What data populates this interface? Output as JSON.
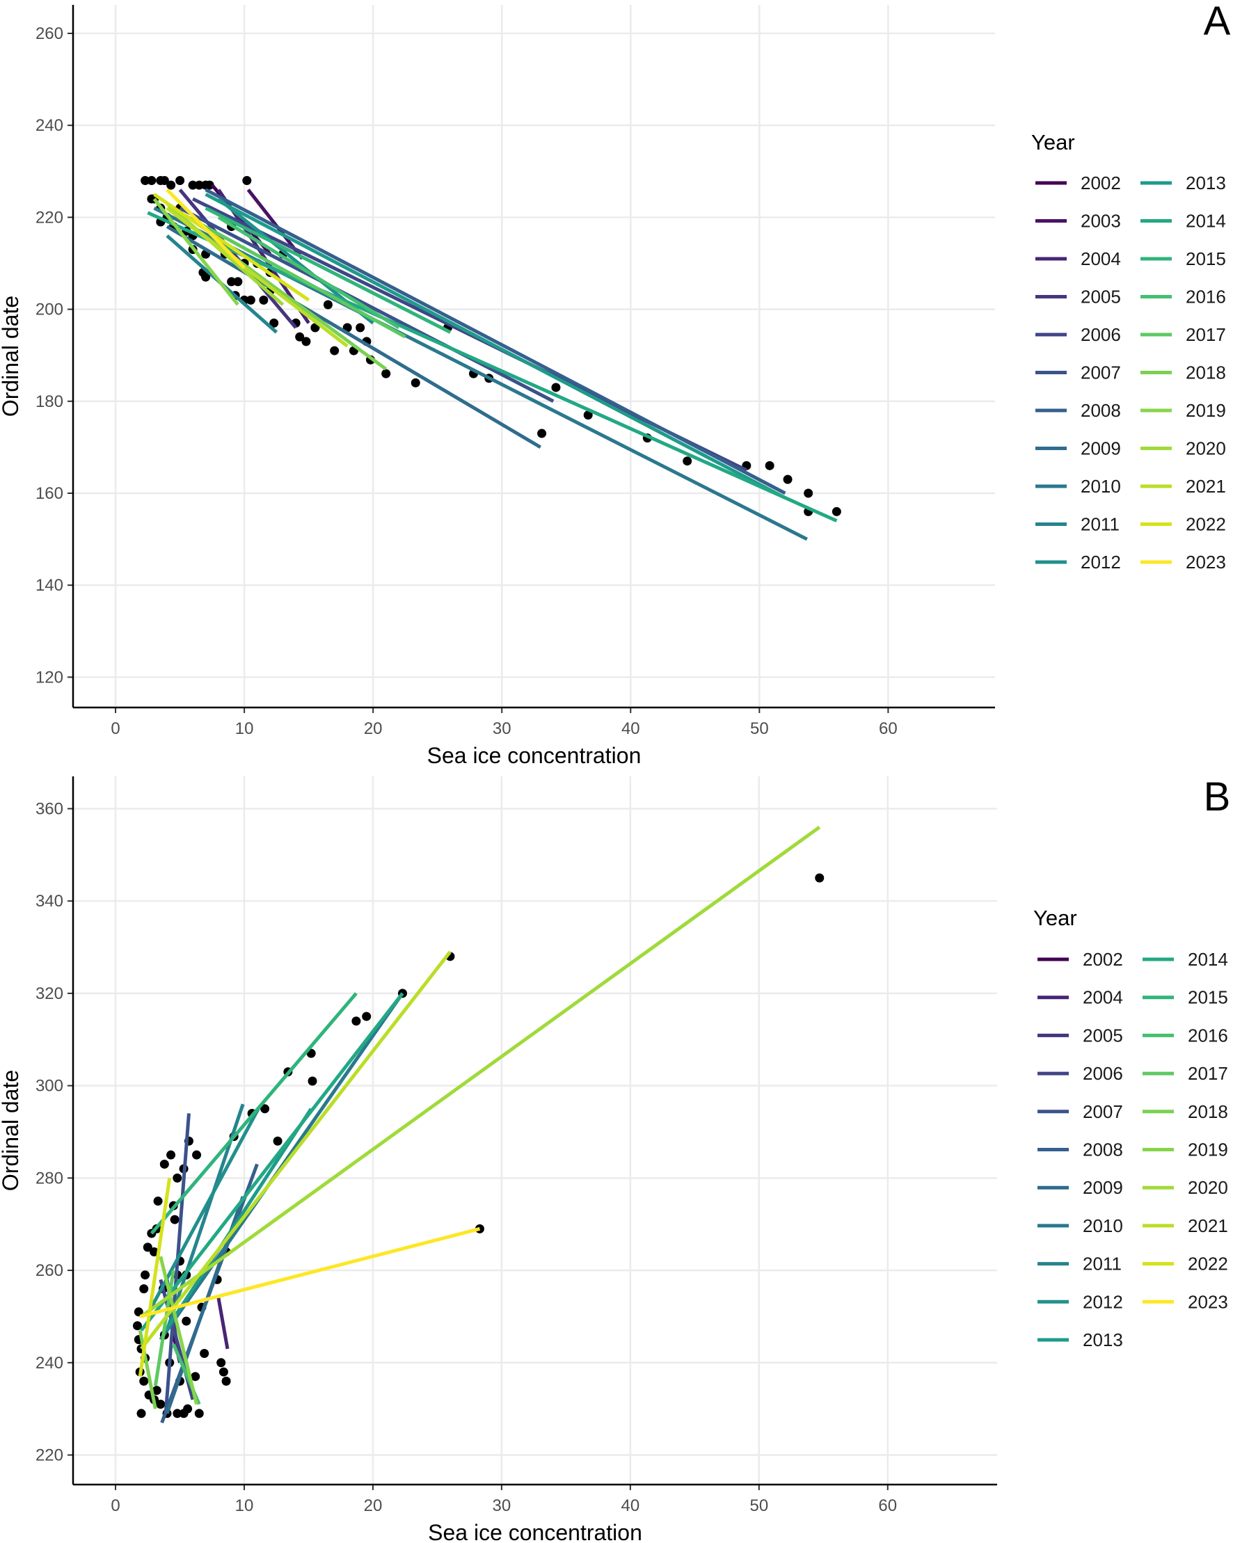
{
  "colors": {
    "2002": "#440154",
    "2003": "#471365",
    "2004": "#482475",
    "2005": "#463480",
    "2006": "#414487",
    "2007": "#3B528B",
    "2008": "#355F8D",
    "2009": "#2F6C8E",
    "2010": "#2A788E",
    "2011": "#25848E",
    "2012": "#21908C",
    "2013": "#1E9B8A",
    "2014": "#22A884",
    "2015": "#2FB47C",
    "2016": "#44BF70",
    "2017": "#5EC962",
    "2018": "#7AD151",
    "2019": "#86D549",
    "2020": "#A0DA39",
    "2021": "#BADE28",
    "2022": "#D5E21A",
    "2023": "#FDE725"
  },
  "chart_data": [
    {
      "type": "scatter",
      "panel_tag": "A",
      "xlabel": "Sea ice concentration",
      "ylabel": "Ordinal date",
      "xlim": [
        -3.3,
        68.3
      ],
      "ylim": [
        113.4,
        266.2
      ],
      "xticks": [
        0,
        10,
        20,
        30,
        40,
        50,
        60
      ],
      "yticks": [
        120,
        140,
        160,
        180,
        200,
        220,
        240,
        260
      ],
      "grid": true,
      "legend_title": "Year",
      "legend_placement": "right",
      "legend_columns": [
        [
          "2002",
          "2003",
          "2004",
          "2005",
          "2006",
          "2007",
          "2008",
          "2009",
          "2010",
          "2011",
          "2012"
        ],
        [
          "2013",
          "2014",
          "2015",
          "2016",
          "2017",
          "2018",
          "2019",
          "2020",
          "2021",
          "2022",
          "2023"
        ]
      ],
      "points": [
        [
          2.3,
          228
        ],
        [
          2.8,
          228
        ],
        [
          3.5,
          228
        ],
        [
          3.8,
          228
        ],
        [
          5,
          228
        ],
        [
          4.3,
          227
        ],
        [
          6,
          227
        ],
        [
          6.5,
          227
        ],
        [
          7,
          227
        ],
        [
          7.3,
          227
        ],
        [
          10.2,
          228
        ],
        [
          2.8,
          224
        ],
        [
          3,
          224
        ],
        [
          3.5,
          222
        ],
        [
          4,
          220
        ],
        [
          3.5,
          219
        ],
        [
          4.5,
          218
        ],
        [
          5.5,
          217
        ],
        [
          6,
          216
        ],
        [
          6,
          213
        ],
        [
          7,
          212
        ],
        [
          6.8,
          208
        ],
        [
          7,
          207
        ],
        [
          8.5,
          212
        ],
        [
          9,
          206
        ],
        [
          9.5,
          206
        ],
        [
          9.3,
          203
        ],
        [
          10,
          202
        ],
        [
          10.5,
          202
        ],
        [
          11,
          210
        ],
        [
          11.5,
          202
        ],
        [
          12,
          204
        ],
        [
          12.3,
          197
        ],
        [
          14,
          197
        ],
        [
          14.3,
          194
        ],
        [
          14.8,
          193
        ],
        [
          15.5,
          196
        ],
        [
          17,
          191
        ],
        [
          16.5,
          201
        ],
        [
          18,
          196
        ],
        [
          18.5,
          191
        ],
        [
          19,
          196
        ],
        [
          19.5,
          193
        ],
        [
          19.8,
          189
        ],
        [
          21,
          186
        ],
        [
          23.3,
          184
        ],
        [
          25.8,
          196
        ],
        [
          27.8,
          186
        ],
        [
          29,
          185
        ],
        [
          33.1,
          173
        ],
        [
          34.2,
          183
        ],
        [
          36.7,
          177
        ],
        [
          41.3,
          172
        ],
        [
          44.4,
          167
        ],
        [
          49,
          166
        ],
        [
          50.8,
          166
        ],
        [
          52.2,
          163
        ],
        [
          53.8,
          160
        ],
        [
          53.8,
          156
        ],
        [
          56,
          156
        ],
        [
          10,
          210
        ],
        [
          8,
          215
        ],
        [
          5,
          222
        ],
        [
          9,
          218
        ],
        [
          12,
          208
        ],
        [
          13,
          212
        ]
      ],
      "lines": [
        {
          "year": "2002",
          "x": [
            7.5,
            12
          ],
          "y": [
            227,
            212
          ]
        },
        {
          "year": "2003",
          "x": [
            10.3,
            14.5
          ],
          "y": [
            226,
            211
          ]
        },
        {
          "year": "2004",
          "x": [
            8,
            15
          ],
          "y": [
            226,
            197
          ]
        },
        {
          "year": "2005",
          "x": [
            5,
            14
          ],
          "y": [
            226,
            196
          ]
        },
        {
          "year": "2006",
          "x": [
            6,
            49
          ],
          "y": [
            224,
            165
          ]
        },
        {
          "year": "2007",
          "x": [
            5,
            34
          ],
          "y": [
            222,
            180
          ]
        },
        {
          "year": "2008",
          "x": [
            7,
            52
          ],
          "y": [
            226,
            160
          ]
        },
        {
          "year": "2009",
          "x": [
            4,
            33
          ],
          "y": [
            218,
            170
          ]
        },
        {
          "year": "2010",
          "x": [
            3,
            53.7
          ],
          "y": [
            222,
            150
          ]
        },
        {
          "year": "2011",
          "x": [
            4,
            12.5
          ],
          "y": [
            216,
            195
          ]
        },
        {
          "year": "2012",
          "x": [
            8,
            20
          ],
          "y": [
            224,
            197
          ]
        },
        {
          "year": "2013",
          "x": [
            7,
            52
          ],
          "y": [
            225,
            159
          ]
        },
        {
          "year": "2014",
          "x": [
            2.5,
            56
          ],
          "y": [
            221,
            154
          ]
        },
        {
          "year": "2015",
          "x": [
            7,
            26
          ],
          "y": [
            222,
            195
          ]
        },
        {
          "year": "2016",
          "x": [
            8,
            22
          ],
          "y": [
            220,
            196
          ]
        },
        {
          "year": "2017",
          "x": [
            5,
            22.5
          ],
          "y": [
            221,
            194
          ]
        },
        {
          "year": "2018",
          "x": [
            4,
            21
          ],
          "y": [
            222,
            187
          ]
        },
        {
          "year": "2019",
          "x": [
            3,
            9.5
          ],
          "y": [
            224,
            201
          ]
        },
        {
          "year": "2020",
          "x": [
            4,
            13
          ],
          "y": [
            223,
            201
          ]
        },
        {
          "year": "2021",
          "x": [
            4,
            18
          ],
          "y": [
            222,
            192
          ]
        },
        {
          "year": "2022",
          "x": [
            3,
            15
          ],
          "y": [
            225,
            202
          ]
        },
        {
          "year": "2023",
          "x": [
            4,
            10
          ],
          "y": [
            226,
            209
          ]
        }
      ]
    },
    {
      "type": "scatter",
      "panel_tag": "B",
      "xlabel": "Sea ice concentration",
      "ylabel": "Ordinal date",
      "xlim": [
        -3.3,
        68.5
      ],
      "ylim": [
        213.6,
        367
      ],
      "xticks": [
        0,
        10,
        20,
        30,
        40,
        50,
        60
      ],
      "yticks": [
        220,
        240,
        260,
        280,
        300,
        320,
        340,
        360
      ],
      "grid": true,
      "legend_title": "Year",
      "legend_placement": "right",
      "legend_columns": [
        [
          "2002",
          "2004",
          "2005",
          "2006",
          "2007",
          "2008",
          "2009",
          "2010",
          "2011",
          "2012",
          "2013"
        ],
        [
          "2014",
          "2015",
          "2016",
          "2017",
          "2018",
          "2019",
          "2020",
          "2021",
          "2022",
          "2023"
        ]
      ],
      "points": [
        [
          54.7,
          345
        ],
        [
          28.3,
          269
        ],
        [
          26,
          328
        ],
        [
          22.3,
          320
        ],
        [
          19.5,
          315
        ],
        [
          18.7,
          314
        ],
        [
          15.2,
          307
        ],
        [
          15.3,
          301
        ],
        [
          13.4,
          303
        ],
        [
          12.6,
          288
        ],
        [
          11.6,
          295
        ],
        [
          10.6,
          294
        ],
        [
          9.2,
          289
        ],
        [
          8.6,
          264
        ],
        [
          7.9,
          258
        ],
        [
          8.2,
          240
        ],
        [
          8.4,
          238
        ],
        [
          8.6,
          236
        ],
        [
          6.9,
          242
        ],
        [
          6.3,
          285
        ],
        [
          5.7,
          288
        ],
        [
          5.3,
          282
        ],
        [
          4.8,
          280
        ],
        [
          4.3,
          285
        ],
        [
          3.8,
          283
        ],
        [
          4.5,
          274
        ],
        [
          4.6,
          271
        ],
        [
          3.3,
          275
        ],
        [
          3.2,
          269
        ],
        [
          2.8,
          268
        ],
        [
          2.5,
          265
        ],
        [
          3,
          264
        ],
        [
          2.3,
          259
        ],
        [
          2.2,
          256
        ],
        [
          1.8,
          251
        ],
        [
          1.7,
          248
        ],
        [
          1.8,
          245
        ],
        [
          2,
          243
        ],
        [
          2.3,
          241
        ],
        [
          1.9,
          238
        ],
        [
          2.2,
          236
        ],
        [
          2,
          229
        ],
        [
          2.6,
          233
        ],
        [
          3,
          232
        ],
        [
          3.5,
          231
        ],
        [
          4,
          229
        ],
        [
          4.8,
          229
        ],
        [
          5.3,
          229
        ],
        [
          5.6,
          230
        ],
        [
          6.5,
          229
        ],
        [
          6.2,
          237
        ],
        [
          5,
          236
        ],
        [
          3.2,
          234
        ],
        [
          4.2,
          240
        ],
        [
          5.5,
          249
        ],
        [
          6.7,
          252
        ],
        [
          5,
          262
        ],
        [
          4.8,
          259
        ],
        [
          5.5,
          259
        ],
        [
          3.7,
          256
        ],
        [
          4.5,
          250
        ],
        [
          3.8,
          246
        ]
      ],
      "lines": [
        {
          "year": "2002",
          "x": [
            4.5,
            5
          ],
          "y": [
            246,
            240
          ]
        },
        {
          "year": "2004",
          "x": [
            8,
            8.7
          ],
          "y": [
            254,
            243
          ]
        },
        {
          "year": "2005",
          "x": [
            4,
            5
          ],
          "y": [
            258,
            240
          ]
        },
        {
          "year": "2006",
          "x": [
            3.5,
            6
          ],
          "y": [
            258,
            232
          ]
        },
        {
          "year": "2007",
          "x": [
            5.7,
            3.9
          ],
          "y": [
            294,
            229
          ]
        },
        {
          "year": "2008",
          "x": [
            3.6,
            11
          ],
          "y": [
            227,
            283
          ]
        },
        {
          "year": "2009",
          "x": [
            4,
            9.9
          ],
          "y": [
            229,
            276
          ]
        },
        {
          "year": "2010",
          "x": [
            3.5,
            22.3
          ],
          "y": [
            245,
            320
          ]
        },
        {
          "year": "2011",
          "x": [
            4,
            9.9
          ],
          "y": [
            247,
            296
          ]
        },
        {
          "year": "2012",
          "x": [
            2.6,
            11.1
          ],
          "y": [
            251,
            295
          ]
        },
        {
          "year": "2013",
          "x": [
            3.9,
            15.2
          ],
          "y": [
            247,
            295
          ]
        },
        {
          "year": "2014",
          "x": [
            2,
            22.3
          ],
          "y": [
            247,
            320
          ]
        },
        {
          "year": "2015",
          "x": [
            2.8,
            18.7
          ],
          "y": [
            268,
            320
          ]
        },
        {
          "year": "2016",
          "x": [
            4.5,
            6.5
          ],
          "y": [
            244,
            231
          ]
        },
        {
          "year": "2017",
          "x": [
            4.5,
            3.1
          ],
          "y": [
            260,
            235
          ]
        },
        {
          "year": "2018",
          "x": [
            1.9,
            3.1
          ],
          "y": [
            247,
            230
          ]
        },
        {
          "year": "2019",
          "x": [
            3.5,
            6.3
          ],
          "y": [
            263,
            231
          ]
        },
        {
          "year": "2020",
          "x": [
            2,
            54.7
          ],
          "y": [
            250,
            356
          ]
        },
        {
          "year": "2021",
          "x": [
            2,
            26
          ],
          "y": [
            243,
            329
          ]
        },
        {
          "year": "2022",
          "x": [
            1.9,
            4.2
          ],
          "y": [
            237,
            280
          ]
        },
        {
          "year": "2023",
          "x": [
            1.9,
            28.3
          ],
          "y": [
            250,
            269
          ]
        }
      ]
    }
  ]
}
